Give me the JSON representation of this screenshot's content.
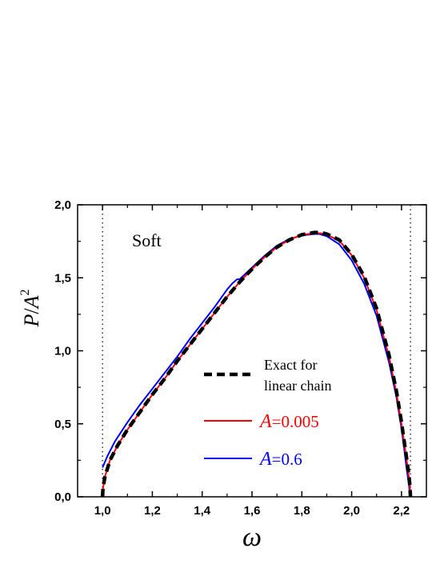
{
  "chart_data": {
    "type": "line",
    "title": "",
    "annotation": "Soft",
    "xlabel": "ω",
    "ylabel_parts": {
      "p": "P",
      "slash": "/",
      "a": "A",
      "exp": "2"
    },
    "xlim": [
      0.9,
      2.3
    ],
    "ylim": [
      0.0,
      2.0
    ],
    "x_ticks": [
      1.0,
      1.2,
      1.4,
      1.6,
      1.8,
      2.0,
      2.2
    ],
    "x_tick_labels": [
      "1,0",
      "1,2",
      "1,4",
      "1,6",
      "1,8",
      "2,0",
      "2,2"
    ],
    "y_ticks": [
      0.0,
      0.5,
      1.0,
      1.5,
      2.0
    ],
    "y_tick_labels": [
      "0,0",
      "0,5",
      "1,0",
      "1,5",
      "2,0"
    ],
    "vertical_dotted_lines": [
      1.0,
      2.236
    ],
    "grid": false,
    "legend_placement": "lower-center",
    "series": [
      {
        "name_lines": [
          "Exact for",
          "linear chain"
        ],
        "style": "dashed",
        "color": "#000000",
        "x": [
          1.0,
          1.002,
          1.01,
          1.03,
          1.06,
          1.1,
          1.15,
          1.2,
          1.25,
          1.3,
          1.35,
          1.4,
          1.45,
          1.5,
          1.55,
          1.6,
          1.65,
          1.7,
          1.75,
          1.8,
          1.85,
          1.875,
          1.9,
          1.95,
          2.0,
          2.05,
          2.1,
          2.15,
          2.18,
          2.2,
          2.21,
          2.22,
          2.23,
          2.234,
          2.236
        ],
        "y": [
          0.0,
          0.06,
          0.14,
          0.25,
          0.35,
          0.46,
          0.58,
          0.7,
          0.81,
          0.93,
          1.04,
          1.15,
          1.26,
          1.37,
          1.47,
          1.56,
          1.64,
          1.71,
          1.76,
          1.795,
          1.81,
          1.81,
          1.8,
          1.76,
          1.66,
          1.51,
          1.29,
          0.97,
          0.72,
          0.51,
          0.39,
          0.27,
          0.14,
          0.07,
          0.0
        ]
      },
      {
        "name_prefix": "A",
        "name_value": "=0.005",
        "style": "solid",
        "color": "#ff0000",
        "x": [
          1.0,
          1.002,
          1.01,
          1.03,
          1.06,
          1.1,
          1.15,
          1.2,
          1.25,
          1.3,
          1.35,
          1.4,
          1.45,
          1.5,
          1.55,
          1.6,
          1.65,
          1.7,
          1.75,
          1.8,
          1.85,
          1.875,
          1.9,
          1.95,
          2.0,
          2.05,
          2.1,
          2.15,
          2.18,
          2.2,
          2.21,
          2.22,
          2.23,
          2.234,
          2.236
        ],
        "y": [
          0.0,
          0.06,
          0.14,
          0.25,
          0.35,
          0.46,
          0.58,
          0.7,
          0.81,
          0.93,
          1.04,
          1.15,
          1.26,
          1.37,
          1.47,
          1.56,
          1.64,
          1.71,
          1.76,
          1.795,
          1.805,
          1.805,
          1.795,
          1.755,
          1.655,
          1.5,
          1.28,
          0.96,
          0.71,
          0.5,
          0.38,
          0.26,
          0.13,
          0.06,
          0.0
        ]
      },
      {
        "name_prefix": "A",
        "name_value": "=0.6",
        "style": "solid",
        "color": "#0000ff",
        "x": [
          1.0,
          1.02,
          1.05,
          1.1,
          1.15,
          1.2,
          1.25,
          1.3,
          1.35,
          1.4,
          1.45,
          1.5,
          1.52,
          1.54,
          1.55,
          1.6,
          1.65,
          1.7,
          1.75,
          1.8,
          1.85,
          1.87,
          1.9,
          1.95,
          2.0,
          2.05,
          2.1,
          2.15,
          2.18,
          2.2,
          2.21,
          2.22,
          2.23,
          2.235
        ],
        "y": [
          0.2,
          0.28,
          0.38,
          0.51,
          0.63,
          0.74,
          0.85,
          0.96,
          1.08,
          1.19,
          1.3,
          1.42,
          1.46,
          1.49,
          1.49,
          1.57,
          1.65,
          1.72,
          1.765,
          1.79,
          1.8,
          1.8,
          1.785,
          1.73,
          1.62,
          1.46,
          1.24,
          0.92,
          0.68,
          0.47,
          0.34,
          0.2,
          0.08,
          0.0
        ]
      }
    ]
  }
}
